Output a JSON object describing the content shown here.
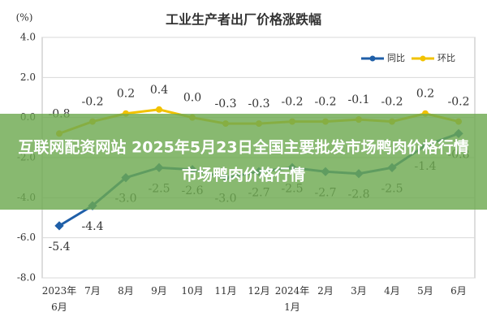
{
  "chart_data": {
    "type": "line",
    "title": "工业生产者出厂价格涨跌幅",
    "y_label": "(%)",
    "categories": [
      "2023年\n6月",
      "7月",
      "8月",
      "9月",
      "10月",
      "11月",
      "12月",
      "2024年\n1月",
      "2月",
      "3月",
      "4月",
      "5月",
      "6月"
    ],
    "series": [
      {
        "name": "同比",
        "color": "#1f5fa8",
        "values": [
          -5.4,
          -4.4,
          -3.0,
          -2.5,
          -2.6,
          -3.0,
          -2.7,
          -2.5,
          -2.7,
          -2.8,
          -2.5,
          -1.4,
          -0.8
        ],
        "value_labels": [
          "-5.4",
          "-4.4",
          "-3.0",
          "-2.5",
          "-2.6",
          "-3.0",
          "-2.7",
          "-2.5",
          "-2.7",
          "-2.8",
          "-2.5",
          "-1.4",
          "-0.8"
        ]
      },
      {
        "name": "环比",
        "color": "#f2c200",
        "values": [
          -0.8,
          -0.2,
          0.2,
          0.4,
          0.0,
          -0.3,
          -0.3,
          -0.2,
          -0.2,
          -0.1,
          -0.2,
          0.2,
          -0.2
        ],
        "value_labels": [
          "-0.8",
          "-0.2",
          "0.2",
          "0.4",
          "0.0",
          "-0.3",
          "-0.3",
          "-0.2",
          "-0.2",
          "-0.1",
          "-0.2",
          "0.2",
          "-0.2"
        ]
      }
    ],
    "ylim": [
      -8,
      4
    ],
    "yticks": [
      {
        "value": 4,
        "label": "4.0"
      },
      {
        "value": 2,
        "label": "2.0"
      },
      {
        "value": 0,
        "label": "0.0"
      },
      {
        "value": -2,
        "label": "-2.0"
      },
      {
        "value": -4,
        "label": "-4.0"
      },
      {
        "value": -6,
        "label": "-6.0"
      },
      {
        "value": -8,
        "label": "-8.0"
      }
    ],
    "grid": true,
    "legend": "top-right"
  },
  "banner": {
    "lines": [
      "互联网配资网站 2025年5月23日全国主要批发市场鸭肉价格行情",
      "市场鸭肉价格行情"
    ]
  }
}
